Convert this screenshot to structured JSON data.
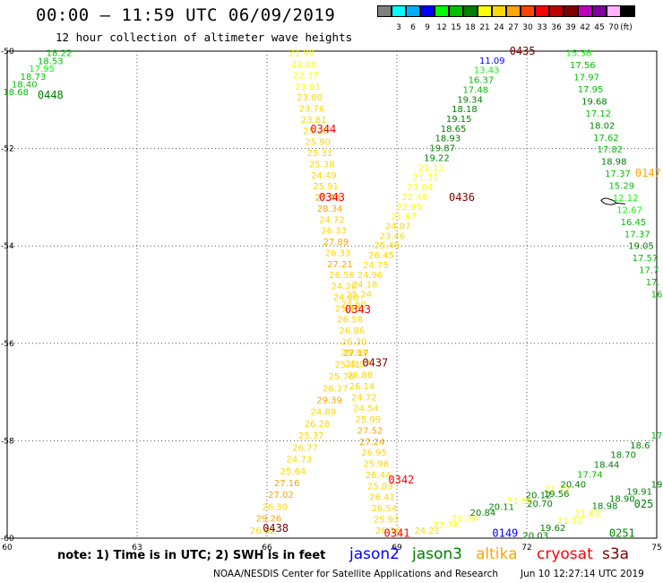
{
  "header": {
    "title": "00:00 – 11:59 UTC 06/09/2019",
    "subtitle": "12 hour collection of altimeter wave heights"
  },
  "colorbar": {
    "unit": "(ft)",
    "colors": [
      "#808080",
      "#00ffff",
      "#00b0ff",
      "#0000ff",
      "#00ff00",
      "#00c000",
      "#008000",
      "#ffff00",
      "#ffd700",
      "#ffa500",
      "#ff4500",
      "#ff0000",
      "#c00000",
      "#800000",
      "#c000c0",
      "#8000a0",
      "#ffb0ff",
      "#000000"
    ],
    "labels": [
      "3",
      "6",
      "9",
      "12",
      "15",
      "18",
      "21",
      "24",
      "27",
      "30",
      "33",
      "36",
      "39",
      "42",
      "45",
      "70"
    ]
  },
  "axes": {
    "x_ticks": [
      "60",
      "63",
      "66",
      "69",
      "72",
      "75"
    ],
    "y_ticks": [
      "-50",
      "-52",
      "-54",
      "-56",
      "-58",
      "-60"
    ],
    "x_range": [
      60,
      75
    ],
    "y_range": [
      -60,
      -50
    ]
  },
  "time_labels": [
    {
      "text": "0448",
      "lon": 61.0,
      "lat": -50.9,
      "color": "#008000"
    },
    {
      "text": "0344",
      "lon": 67.3,
      "lat": -51.6,
      "color": "#ff0000"
    },
    {
      "text": "0343",
      "lon": 67.5,
      "lat": -53.0,
      "color": "#ff0000"
    },
    {
      "text": "0436",
      "lon": 70.5,
      "lat": -53.0,
      "color": "#800000"
    },
    {
      "text": "0343",
      "lon": 68.1,
      "lat": -55.3,
      "color": "#ff0000"
    },
    {
      "text": "0437",
      "lon": 68.5,
      "lat": -56.4,
      "color": "#800000"
    },
    {
      "text": "0342",
      "lon": 69.1,
      "lat": -58.8,
      "color": "#ff0000"
    },
    {
      "text": "0438",
      "lon": 66.2,
      "lat": -59.8,
      "color": "#800000"
    },
    {
      "text": "0341",
      "lon": 69.0,
      "lat": -59.9,
      "color": "#ff0000"
    },
    {
      "text": "0149",
      "lon": 71.5,
      "lat": -59.9,
      "color": "#0000ff"
    },
    {
      "text": "0251",
      "lon": 74.2,
      "lat": -59.9,
      "color": "#008000"
    },
    {
      "text": "0435",
      "lon": 71.9,
      "lat": -50.0,
      "color": "#800000"
    },
    {
      "text": "0147",
      "lon": 74.8,
      "lat": -52.5,
      "color": "#ffa500"
    },
    {
      "text": "025",
      "lon": 74.7,
      "lat": -59.3,
      "color": "#008000"
    }
  ],
  "tracks": [
    {
      "name": "track-nw-green",
      "start": {
        "lon": 61.2,
        "lat": -50.05
      },
      "end": {
        "lon": 60.2,
        "lat": -50.85
      },
      "values": [
        {
          "v": "18.22",
          "c": "#00c000"
        },
        {
          "v": "18.53",
          "c": "#00c000"
        },
        {
          "v": "17.95",
          "c": "#00ff00"
        },
        {
          "v": "18.73",
          "c": "#00c000"
        },
        {
          "v": "18.40",
          "c": "#00c000"
        },
        {
          "v": "18.68",
          "c": "#00c000"
        }
      ]
    },
    {
      "name": "track-center-descending",
      "start": {
        "lon": 66.8,
        "lat": -50.05
      },
      "end": {
        "lon": 68.8,
        "lat": -59.85
      },
      "values": [
        {
          "v": "21.90",
          "c": "#ffff00"
        },
        {
          "v": "23.00",
          "c": "#ffff00"
        },
        {
          "v": "22.37",
          "c": "#ffff00"
        },
        {
          "v": "23.01",
          "c": "#ffff00"
        },
        {
          "v": "23.80",
          "c": "#ffd700"
        },
        {
          "v": "23.76",
          "c": "#ffd700"
        },
        {
          "v": "23.81",
          "c": "#ffd700"
        },
        {
          "v": "25.20",
          "c": "#ffd700"
        },
        {
          "v": "25.90",
          "c": "#ffd700"
        },
        {
          "v": "25.31",
          "c": "#ffd700"
        },
        {
          "v": "25.38",
          "c": "#ffd700"
        },
        {
          "v": "24.49",
          "c": "#ffd700"
        },
        {
          "v": "25.91",
          "c": "#ffd700"
        },
        {
          "v": "27.48",
          "c": "#ffa500"
        },
        {
          "v": "28.34",
          "c": "#ffa500"
        },
        {
          "v": "24.72",
          "c": "#ffd700"
        },
        {
          "v": "26.33",
          "c": "#ffd700"
        },
        {
          "v": "27.89",
          "c": "#ffa500"
        },
        {
          "v": "26.33",
          "c": "#ffd700"
        },
        {
          "v": "27.21",
          "c": "#ffa500"
        },
        {
          "v": "26.56",
          "c": "#ffd700"
        },
        {
          "v": "24.20",
          "c": "#ffd700"
        },
        {
          "v": "24.80",
          "c": "#ffd700"
        },
        {
          "v": "25.13",
          "c": "#ffd700"
        },
        {
          "v": "26.58",
          "c": "#ffd700"
        },
        {
          "v": "26.86",
          "c": "#ffd700"
        },
        {
          "v": "26.30",
          "c": "#ffd700"
        },
        {
          "v": "27.17",
          "c": "#ffa500"
        },
        {
          "v": "25.97",
          "c": "#ffd700"
        },
        {
          "v": "26.88",
          "c": "#ffd700"
        },
        {
          "v": "26.14",
          "c": "#ffd700"
        },
        {
          "v": "24.72",
          "c": "#ffd700"
        },
        {
          "v": "24.54",
          "c": "#ffd700"
        },
        {
          "v": "25.99",
          "c": "#ffd700"
        },
        {
          "v": "27.52",
          "c": "#ffa500"
        },
        {
          "v": "27.24",
          "c": "#ffa500"
        },
        {
          "v": "26.95",
          "c": "#ffd700"
        },
        {
          "v": "25.98",
          "c": "#ffd700"
        },
        {
          "v": "26.44",
          "c": "#ffd700"
        },
        {
          "v": "25.03",
          "c": "#ffd700"
        },
        {
          "v": "26.41",
          "c": "#ffd700"
        },
        {
          "v": "26.54",
          "c": "#ffd700"
        },
        {
          "v": "25.93",
          "c": "#ffd700"
        },
        {
          "v": "26.16",
          "c": "#ffd700"
        }
      ]
    },
    {
      "name": "track-center-ascending-altika",
      "start": {
        "lon": 65.9,
        "lat": -59.85
      },
      "end": {
        "lon": 68.0,
        "lat": -56.2
      },
      "values": [
        {
          "v": "26.92",
          "c": "#ffd700"
        },
        {
          "v": "29.26",
          "c": "#ffa500"
        },
        {
          "v": "26.30",
          "c": "#ffd700"
        },
        {
          "v": "27.02",
          "c": "#ffa500"
        },
        {
          "v": "27.16",
          "c": "#ffa500"
        },
        {
          "v": "25.64",
          "c": "#ffd700"
        },
        {
          "v": "24.73",
          "c": "#ffd700"
        },
        {
          "v": "26.77",
          "c": "#ffd700"
        },
        {
          "v": "25.37",
          "c": "#ffd700"
        },
        {
          "v": "26.28",
          "c": "#ffd700"
        },
        {
          "v": "24.89",
          "c": "#ffd700"
        },
        {
          "v": "29.39",
          "c": "#ffa500"
        },
        {
          "v": "26.27",
          "c": "#ffd700"
        },
        {
          "v": "25.76",
          "c": "#ffd700"
        },
        {
          "v": "25.41",
          "c": "#ffd700"
        },
        {
          "v": "25.33",
          "c": "#ffd700"
        }
      ]
    },
    {
      "name": "track-center-ascending-green",
      "start": {
        "lon": 68.0,
        "lat": -55.2
      },
      "end": {
        "lon": 71.2,
        "lat": -50.2
      },
      "values": [
        {
          "v": "24.60",
          "c": "#ffd700"
        },
        {
          "v": "25.24",
          "c": "#ffd700"
        },
        {
          "v": "24.18",
          "c": "#ffd700"
        },
        {
          "v": "24.96",
          "c": "#ffd700"
        },
        {
          "v": "24.75",
          "c": "#ffd700"
        },
        {
          "v": "26.45",
          "c": "#ffd700"
        },
        {
          "v": "25.49",
          "c": "#ffd700"
        },
        {
          "v": "23.46",
          "c": "#ffd700"
        },
        {
          "v": "24.07",
          "c": "#ffd700"
        },
        {
          "v": "21.97",
          "c": "#ffff00"
        },
        {
          "v": "22.85",
          "c": "#ffff00"
        },
        {
          "v": "22.48",
          "c": "#ffff00"
        },
        {
          "v": "21.04",
          "c": "#ffff00"
        },
        {
          "v": "21.31",
          "c": "#ffff00"
        },
        {
          "v": "21.12",
          "c": "#ffff00"
        },
        {
          "v": "19.22",
          "c": "#008000"
        },
        {
          "v": "19.87",
          "c": "#008000"
        },
        {
          "v": "18.93",
          "c": "#008000"
        },
        {
          "v": "18.65",
          "c": "#008000"
        },
        {
          "v": "19.15",
          "c": "#008000"
        },
        {
          "v": "18.18",
          "c": "#008000"
        },
        {
          "v": "19.34",
          "c": "#008000"
        },
        {
          "v": "17.48",
          "c": "#00c000"
        },
        {
          "v": "16.37",
          "c": "#00c000"
        },
        {
          "v": "13.43",
          "c": "#00ff00"
        },
        {
          "v": "11.09",
          "c": "#0000ff"
        }
      ]
    },
    {
      "name": "track-east-descending",
      "start": {
        "lon": 73.2,
        "lat": -50.05
      },
      "end": {
        "lon": 75.0,
        "lat": -55.0
      },
      "values": [
        {
          "v": "15.38",
          "c": "#00ff00"
        },
        {
          "v": "17.56",
          "c": "#00c000"
        },
        {
          "v": "17.97",
          "c": "#00c000"
        },
        {
          "v": "17.95",
          "c": "#00c000"
        },
        {
          "v": "19.68",
          "c": "#008000"
        },
        {
          "v": "17.12",
          "c": "#00c000"
        },
        {
          "v": "18.02",
          "c": "#008000"
        },
        {
          "v": "17.62",
          "c": "#00c000"
        },
        {
          "v": "17.82",
          "c": "#00c000"
        },
        {
          "v": "18.98",
          "c": "#008000"
        },
        {
          "v": "17.37",
          "c": "#00c000"
        },
        {
          "v": "15.29",
          "c": "#00c000"
        },
        {
          "v": "12.12",
          "c": "#00ff00"
        },
        {
          "v": "12.67",
          "c": "#00ff00"
        },
        {
          "v": "16.45",
          "c": "#00c000"
        },
        {
          "v": "17.37",
          "c": "#00c000"
        },
        {
          "v": "19.05",
          "c": "#008000"
        },
        {
          "v": "17.57",
          "c": "#00c000"
        },
        {
          "v": "17.7",
          "c": "#00c000"
        },
        {
          "v": "17.",
          "c": "#00c000"
        },
        {
          "v": "16",
          "c": "#00c000"
        }
      ]
    },
    {
      "name": "track-se-ascending-1",
      "start": {
        "lon": 69.7,
        "lat": -59.85
      },
      "end": {
        "lon": 72.7,
        "lat": -59.0
      },
      "values": [
        {
          "v": "24.21",
          "c": "#ffd700"
        },
        {
          "v": "22.78",
          "c": "#ffff00"
        },
        {
          "v": "22.79",
          "c": "#ffff00"
        },
        {
          "v": "20.84",
          "c": "#008000"
        },
        {
          "v": "20.11",
          "c": "#008000"
        },
        {
          "v": "21.90",
          "c": "#ffff00"
        },
        {
          "v": "20.12",
          "c": "#008000"
        },
        {
          "v": "21.72",
          "c": "#ffff00"
        }
      ]
    },
    {
      "name": "track-se-ascending-2",
      "start": {
        "lon": 72.3,
        "lat": -59.3
      },
      "end": {
        "lon": 75.0,
        "lat": -57.9
      },
      "values": [
        {
          "v": "20.70",
          "c": "#008000"
        },
        {
          "v": "19.56",
          "c": "#008000"
        },
        {
          "v": "20.40",
          "c": "#008000"
        },
        {
          "v": "17.74",
          "c": "#00c000"
        },
        {
          "v": "18.44",
          "c": "#008000"
        },
        {
          "v": "18.70",
          "c": "#008000"
        },
        {
          "v": "18.6",
          "c": "#008000"
        },
        {
          "v": "17",
          "c": "#00c000"
        }
      ]
    },
    {
      "name": "track-se-ascending-3",
      "start": {
        "lon": 72.2,
        "lat": -59.95
      },
      "end": {
        "lon": 75.0,
        "lat": -58.9
      },
      "values": [
        {
          "v": "20.03",
          "c": "#008000"
        },
        {
          "v": "19.62",
          "c": "#008000"
        },
        {
          "v": "21.12",
          "c": "#ffff00"
        },
        {
          "v": "21.60",
          "c": "#ffff00"
        },
        {
          "v": "18.98",
          "c": "#008000"
        },
        {
          "v": "18.90",
          "c": "#008000"
        },
        {
          "v": "19.91",
          "c": "#008000"
        },
        {
          "v": "19",
          "c": "#008000"
        }
      ]
    }
  ],
  "footer": {
    "note": "note: 1) Time is in UTC; 2) SWH is in feet",
    "legend": [
      {
        "label": "jason2",
        "color": "#0000ff"
      },
      {
        "label": "jason3",
        "color": "#008000"
      },
      {
        "label": "altika",
        "color": "#ffa500"
      },
      {
        "label": "cryosat",
        "color": "#ff0000"
      },
      {
        "label": "s3a",
        "color": "#800000"
      }
    ],
    "credit": "NOAA/NESDIS Center for Satellite Applications and Research",
    "timestamp": "Jun 10 12:27:14 UTC 2019"
  }
}
